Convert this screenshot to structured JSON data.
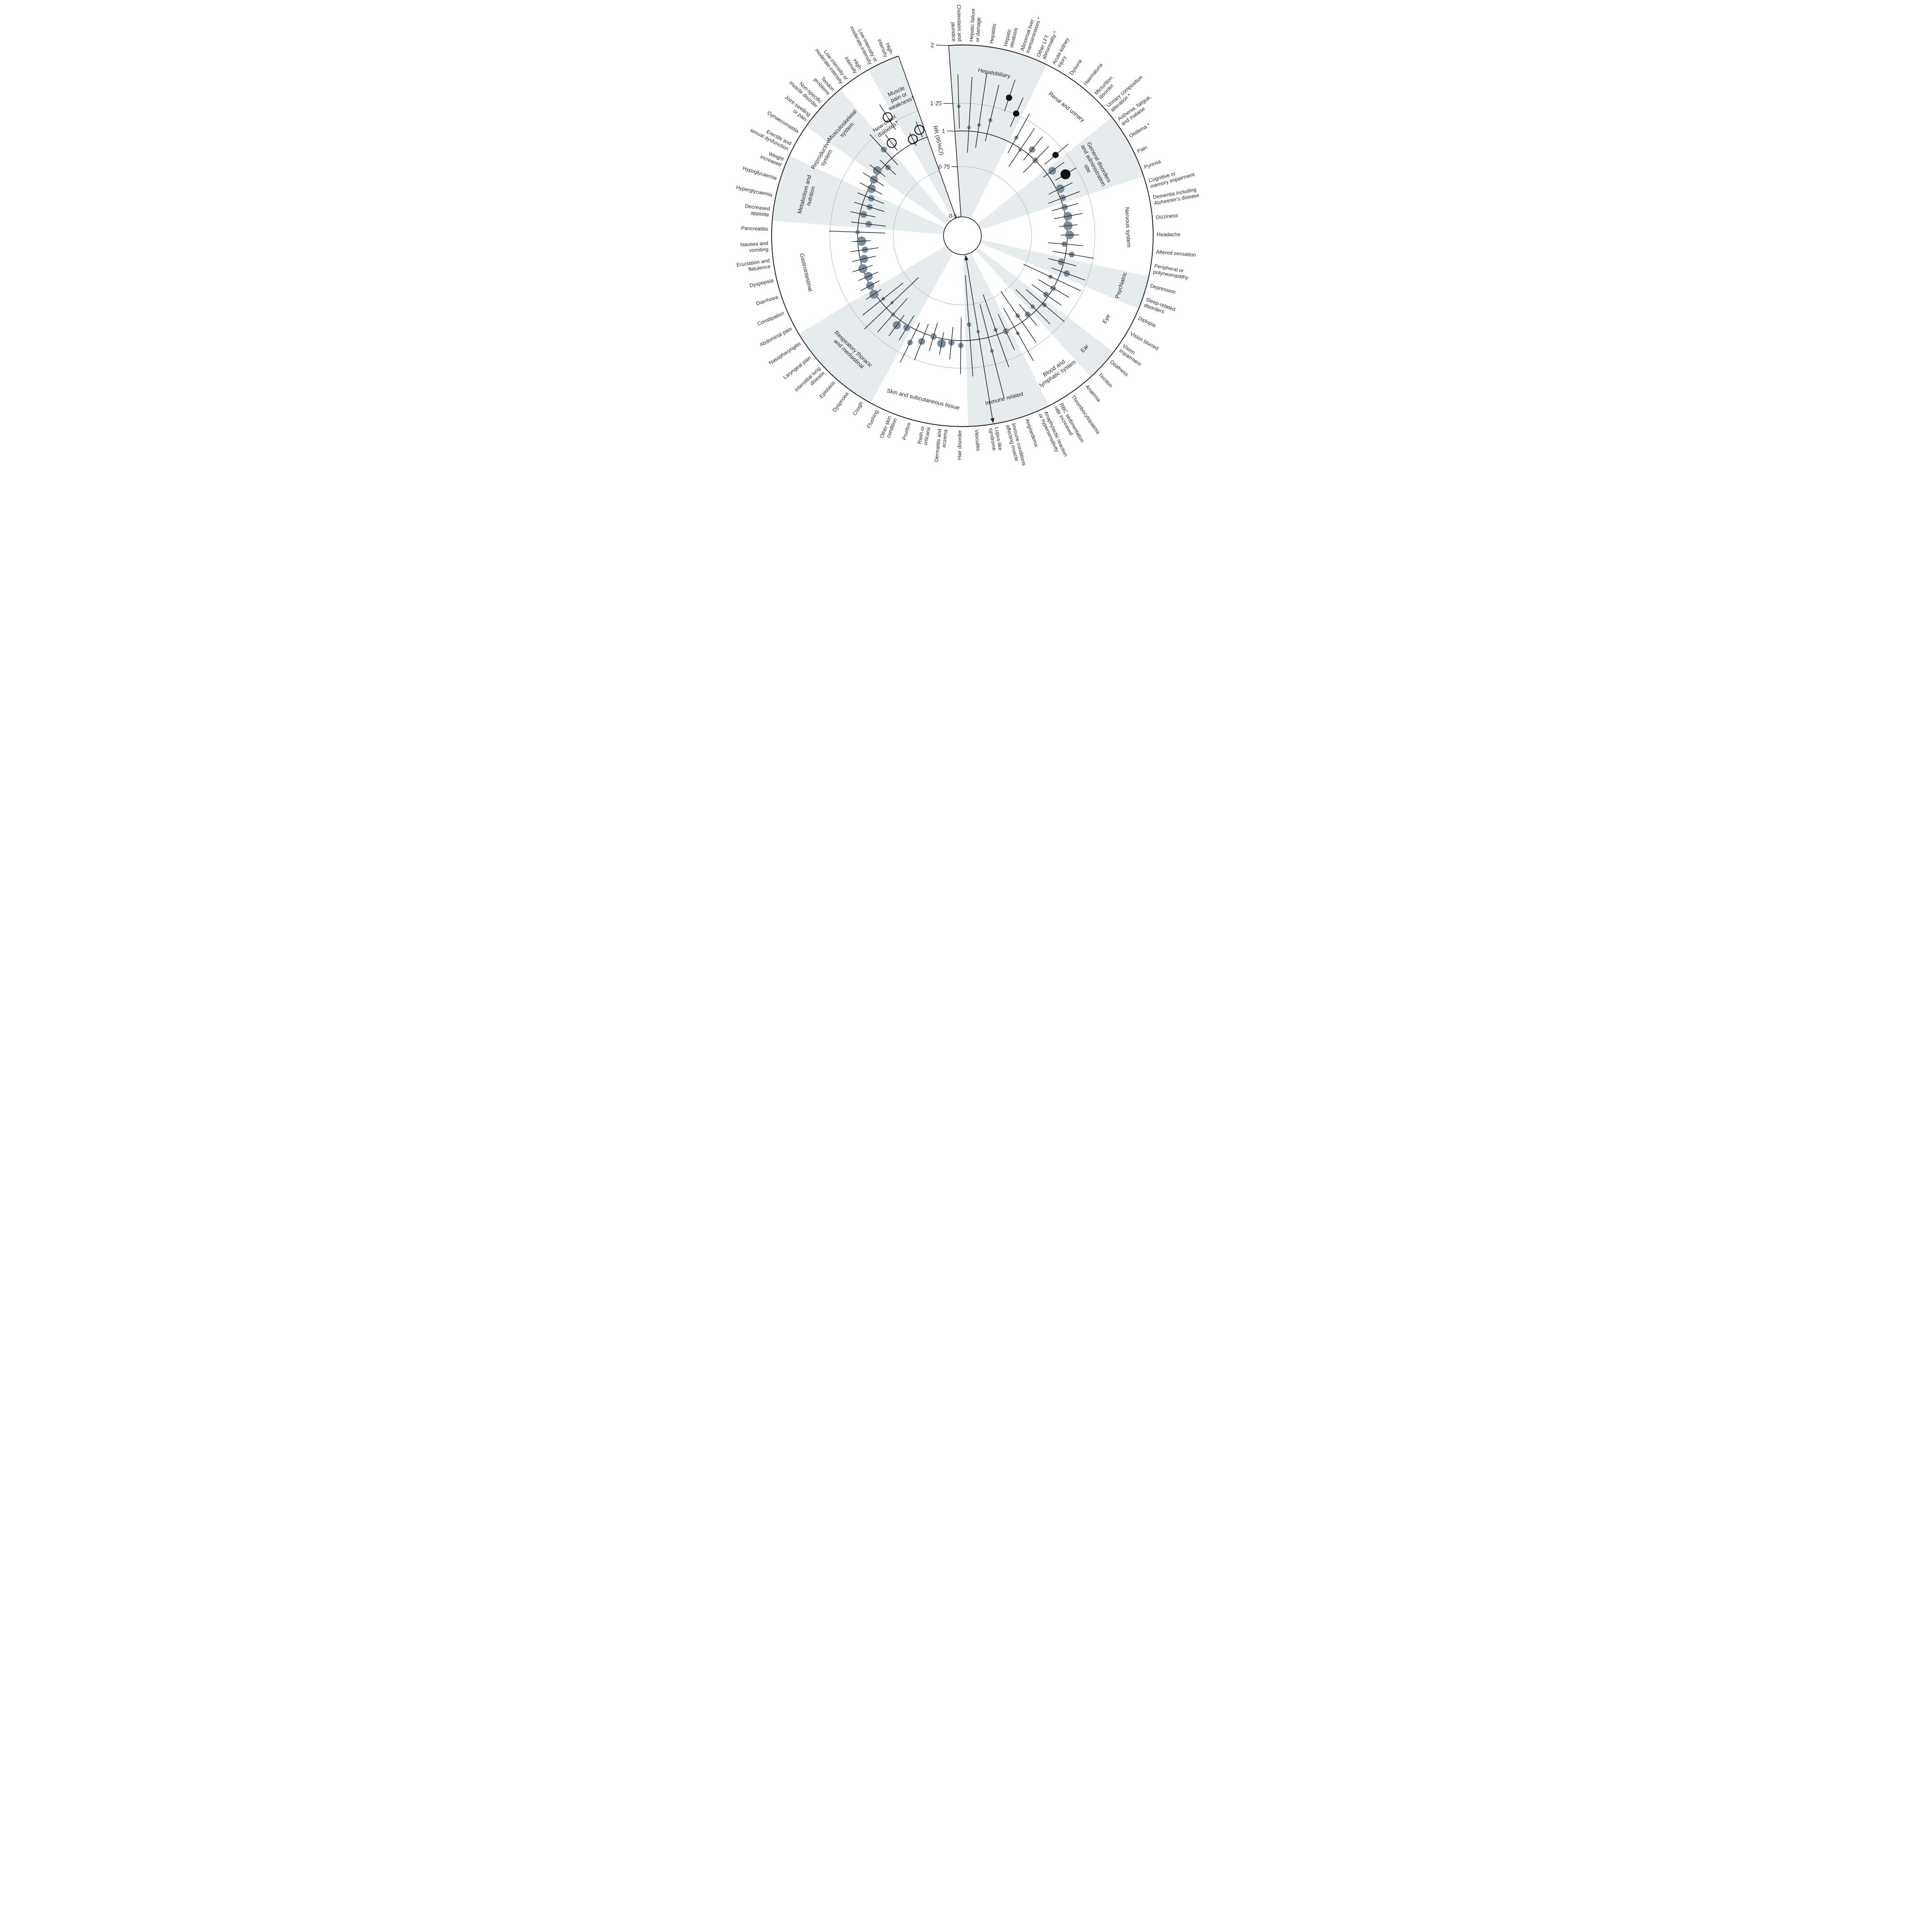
{
  "figure": {
    "axis_title": "RR (95%CI)",
    "ticks": [
      {
        "rr": 2,
        "label": "2"
      },
      {
        "rr": 1.25,
        "label": "1·25"
      },
      {
        "rr": 1,
        "label": "1"
      },
      {
        "rr": 0.75,
        "label": "0·75"
      },
      {
        "rr": 0.5,
        "label": "0·5"
      }
    ]
  },
  "chart_data": {
    "type": "circular_forest_plot",
    "title": "",
    "scale": {
      "min": 0.5,
      "max": 2,
      "transform": "log",
      "rings": [
        0.75,
        1,
        1.25
      ],
      "emphasis_ring": 1
    },
    "colors": {
      "wedge_shaded": "#e6ebed",
      "ring_gray": "#b4bcc2",
      "line": "#231f20",
      "dot_gray": "#7d8c99",
      "dot_black": "#121212",
      "open_stroke": "#1a1a1a",
      "background": "#ffffff"
    },
    "layout": {
      "first_angle_deg": -1.6,
      "step_deg": 5.067,
      "label_gap": 8
    },
    "categories": [
      {
        "name": "Hepatobiliary",
        "lines": [
          "Hepatobiliary"
        ],
        "shaded": true,
        "label_rf": 0.87
      },
      {
        "name": "Renal and urinary",
        "lines": [
          "Renal and urinary"
        ],
        "shaded": false,
        "label_rf": 0.87
      },
      {
        "name": "General disorders and administration site",
        "lines": [
          "General disorders",
          "and administration",
          "site"
        ],
        "shaded": true,
        "label_rf": 0.78
      },
      {
        "name": "Nervous system",
        "lines": [
          "Nervous system"
        ],
        "shaded": false,
        "label_rf": 0.87
      },
      {
        "name": "Psychiatric",
        "lines": [
          "Psychiatric"
        ],
        "shaded": true,
        "label_rf": 0.87
      },
      {
        "name": "Eye",
        "lines": [
          "Eye"
        ],
        "shaded": false,
        "label_rf": 0.87
      },
      {
        "name": "Ear",
        "lines": [
          "Ear"
        ],
        "shaded": true,
        "label_rf": 0.87
      },
      {
        "name": "Blood and lymphatic system",
        "lines": [
          "Blood and",
          "lymphatic system"
        ],
        "shaded": false,
        "label_rf": 0.86
      },
      {
        "name": "Immune related",
        "lines": [
          "Immune related"
        ],
        "shaded": true,
        "label_rf": 0.88
      },
      {
        "name": "Skin and subcutaneous tissue",
        "lines": [
          "Skin and subcutaneous tissue"
        ],
        "shaded": false,
        "label_rf": 0.88
      },
      {
        "name": "Respiratory thoracic and mediastinal",
        "lines": [
          "Respiratory thoracic",
          "and mediastinal"
        ],
        "shaded": true,
        "label_rf": 0.84
      },
      {
        "name": "Gastrointestinal",
        "lines": [
          "Gastrointestinal"
        ],
        "shaded": false,
        "label_rf": 0.84
      },
      {
        "name": "Metabolism and nutrition",
        "lines": [
          "Metabolism and",
          "nutrition"
        ],
        "shaded": true,
        "label_rf": 0.84
      },
      {
        "name": "Reproductive system",
        "lines": [
          "Reproductive",
          "system"
        ],
        "shaded": false,
        "label_rf": 0.84
      },
      {
        "name": "Musculoskeletal system",
        "lines": [
          "Musculoskeletal",
          "system"
        ],
        "shaded": true,
        "label_rf": 0.84
      },
      {
        "name": "New-onset diabetes†",
        "lines": [
          "New-onset",
          "diabetes†"
        ],
        "shaded": false,
        "label_rf": 0.7
      },
      {
        "name": "Muscle pain or weakness†",
        "lines": [
          "Muscle",
          "pain or",
          "weakness†"
        ],
        "shaded": true,
        "label_rf": 0.8
      }
    ],
    "items": [
      {
        "label": [
          "Cholestasis and",
          "jaundice"
        ],
        "cat": 0,
        "rr": 1.22,
        "lo": 1.02,
        "hi": 1.58,
        "size": 4,
        "style": "gray"
      },
      {
        "label": [
          "Hepatic failure",
          "or damage"
        ],
        "cat": 0,
        "rr": 1.03,
        "lo": 0.84,
        "hi": 1.55,
        "size": 4,
        "style": "gray"
      },
      {
        "label": [
          "Hepatitis"
        ],
        "cat": 0,
        "rr": 1.06,
        "lo": 0.88,
        "hi": 1.62,
        "size": 4,
        "style": "gray"
      },
      {
        "label": [
          "Hepatic",
          "steatosis"
        ],
        "cat": 0,
        "rr": 1.12,
        "lo": 0.94,
        "hi": 1.5,
        "size": 4.5,
        "style": "gray"
      },
      {
        "label": [
          "Abnormal liver",
          "transaminases *"
        ],
        "cat": 0,
        "rr": 1.39,
        "lo": 1.24,
        "hi": 1.62,
        "size": 7,
        "style": "black"
      },
      {
        "label": [
          "Other LFT",
          "abnormality *"
        ],
        "cat": 0,
        "rr": 1.26,
        "lo": 1.12,
        "hi": 1.45,
        "size": 7,
        "style": "black"
      },
      {
        "label": [
          "Acute kidney",
          "injury"
        ],
        "cat": 1,
        "rr": 1.06,
        "lo": 0.92,
        "hi": 1.32,
        "size": 4.5,
        "style": "gray"
      },
      {
        "label": [
          "Dysuria"
        ],
        "cat": 1,
        "rr": 0.99,
        "lo": 0.84,
        "hi": 1.22,
        "size": 4,
        "style": "gray"
      },
      {
        "label": [
          "Haematuria"
        ],
        "cat": 1,
        "rr": 1.05,
        "lo": 0.94,
        "hi": 1.2,
        "size": 7,
        "style": "gray"
      },
      {
        "label": [
          "Micturition",
          "disorder"
        ],
        "cat": 1,
        "rr": 1.0,
        "lo": 0.87,
        "hi": 1.17,
        "size": 6,
        "style": "gray"
      },
      {
        "label": [
          "Urinary composition",
          "alteration *"
        ],
        "cat": 1,
        "rr": 1.16,
        "lo": 1.03,
        "hi": 1.33,
        "size": 7,
        "style": "black"
      },
      {
        "label": [
          "Asthenia, fatigue,",
          "and malaise"
        ],
        "cat": 2,
        "rr": 1.05,
        "lo": 0.96,
        "hi": 1.18,
        "size": 8.5,
        "style": "gray"
      },
      {
        "label": [
          "Oedema *"
        ],
        "cat": 2,
        "rr": 1.13,
        "lo": 1.03,
        "hi": 1.25,
        "size": 11,
        "style": "black"
      },
      {
        "label": [
          "Pain"
        ],
        "cat": 2,
        "rr": 1.03,
        "lo": 0.93,
        "hi": 1.15,
        "size": 9.5,
        "style": "gray"
      },
      {
        "label": [
          "Pyrexia"
        ],
        "cat": 2,
        "rr": 1.02,
        "lo": 0.9,
        "hi": 1.18,
        "size": 7,
        "style": "gray"
      },
      {
        "label": [
          "Cognitive or",
          "memory impairment"
        ],
        "cat": 3,
        "rr": 1.01,
        "lo": 0.91,
        "hi": 1.13,
        "size": 7,
        "style": "gray"
      },
      {
        "label": [
          "Dementia including",
          "Alzheimer's disease"
        ],
        "cat": 3,
        "rr": 1.02,
        "lo": 0.91,
        "hi": 1.15,
        "size": 9.5,
        "style": "gray"
      },
      {
        "label": [
          "Dizziness"
        ],
        "cat": 3,
        "rr": 1.01,
        "lo": 0.94,
        "hi": 1.09,
        "size": 10,
        "style": "gray"
      },
      {
        "label": [
          "Headache"
        ],
        "cat": 3,
        "rr": 1.02,
        "lo": 0.95,
        "hi": 1.1,
        "size": 9.5,
        "style": "gray"
      },
      {
        "label": [
          "Altered sensation"
        ],
        "cat": 3,
        "rr": 0.98,
        "lo": 0.86,
        "hi": 1.14,
        "size": 6,
        "style": "gray"
      },
      {
        "label": [
          "Peripheral or",
          "polyneuropathy"
        ],
        "cat": 3,
        "rr": 1.05,
        "lo": 0.9,
        "hi": 1.26,
        "size": 6.5,
        "style": "gray"
      },
      {
        "label": [
          "Depression"
        ],
        "cat": 4,
        "rr": 0.98,
        "lo": 0.88,
        "hi": 1.11,
        "size": 7.5,
        "style": "gray"
      },
      {
        "label": [
          "Sleep-related",
          "disorders"
        ],
        "cat": 4,
        "rr": 1.05,
        "lo": 0.92,
        "hi": 1.23,
        "size": 7,
        "style": "gray"
      },
      {
        "label": [
          "Diplopia"
        ],
        "cat": 5,
        "rr": 0.94,
        "lo": 0.74,
        "hi": 1.23,
        "size": 4.5,
        "style": "gray"
      },
      {
        "label": [
          "Vision blurred"
        ],
        "cat": 5,
        "rr": 1.0,
        "lo": 0.87,
        "hi": 1.16,
        "size": 6,
        "style": "gray"
      },
      {
        "label": [
          "Vision",
          "impairment"
        ],
        "cat": 5,
        "rr": 0.98,
        "lo": 0.85,
        "hi": 1.14,
        "size": 6.5,
        "style": "gray"
      },
      {
        "label": [
          "Deafness"
        ],
        "cat": 6,
        "rr": 1.02,
        "lo": 0.84,
        "hi": 1.26,
        "size": 5,
        "style": "gray"
      },
      {
        "label": [
          "Tinnitus"
        ],
        "cat": 6,
        "rr": 0.96,
        "lo": 0.79,
        "hi": 1.17,
        "size": 5,
        "style": "gray"
      },
      {
        "label": [
          "Anaemia"
        ],
        "cat": 7,
        "rr": 0.98,
        "lo": 0.88,
        "hi": 1.1,
        "size": 6.5,
        "style": "gray"
      },
      {
        "label": [
          "Thrombocytopaenia"
        ],
        "cat": 7,
        "rr": 0.94,
        "lo": 0.74,
        "hi": 1.22,
        "size": 5,
        "style": "gray"
      },
      {
        "label": [
          "RBC sedimentation",
          "rate increased"
        ],
        "cat": 7,
        "rr": 1.06,
        "lo": 0.84,
        "hi": 1.37,
        "size": 4,
        "style": "gray"
      },
      {
        "label": [
          "Anaphylactic reaction",
          "or hypersensitivity"
        ],
        "cat": 8,
        "rr": 1.0,
        "lo": 0.86,
        "hi": 1.18,
        "size": 6.5,
        "style": "gray"
      },
      {
        "label": [
          "Angioedema"
        ],
        "cat": 8,
        "rr": 0.96,
        "lo": 0.71,
        "hi": 1.32,
        "size": 4.5,
        "style": "gray"
      },
      {
        "label": [
          "Immune conditions",
          "affecting muscle"
        ],
        "cat": 8,
        "rr": 1.12,
        "lo": 0.76,
        "hi": 1.66,
        "size": 4,
        "style": "gray"
      },
      {
        "label": [
          "Lupus-like",
          "syndrome"
        ],
        "cat": 8,
        "rr": 0.94,
        "lo": 0.42,
        "hi": 2.3,
        "size": 3.5,
        "style": "gray",
        "arrow_low": true,
        "arrow_high": true
      },
      {
        "label": [
          "Vasculitis"
        ],
        "cat": 8,
        "rr": 0.88,
        "lo": 0.59,
        "hi": 1.34,
        "size": 5,
        "style": "gray"
      },
      {
        "label": [
          "Hair disorder"
        ],
        "cat": 9,
        "rr": 1.04,
        "lo": 0.83,
        "hi": 1.31,
        "size": 6,
        "style": "gray"
      },
      {
        "label": [
          "Dermatitis and",
          "eczema"
        ],
        "cat": 9,
        "rr": 1.02,
        "lo": 0.9,
        "hi": 1.17,
        "size": 7,
        "style": "gray"
      },
      {
        "label": [
          "Rash or",
          "urticaria"
        ],
        "cat": 9,
        "rr": 1.04,
        "lo": 0.95,
        "hi": 1.14,
        "size": 9.5,
        "style": "gray"
      },
      {
        "label": [
          "Pruritus"
        ],
        "cat": 9,
        "rr": 1.0,
        "lo": 0.89,
        "hi": 1.13,
        "size": 7,
        "style": "gray"
      },
      {
        "label": [
          "Other skin",
          "condition"
        ],
        "cat": 9,
        "rr": 1.07,
        "lo": 0.92,
        "hi": 1.26,
        "size": 7.5,
        "style": "gray"
      },
      {
        "label": [
          "Flushing"
        ],
        "cat": 9,
        "rr": 1.12,
        "lo": 0.94,
        "hi": 1.34,
        "size": 6,
        "style": "gray"
      },
      {
        "label": [
          "Cough"
        ],
        "cat": 10,
        "rr": 1.02,
        "lo": 0.91,
        "hi": 1.15,
        "size": 7.5,
        "style": "gray"
      },
      {
        "label": [
          "Dyspnoea"
        ],
        "cat": 10,
        "rr": 1.05,
        "lo": 0.95,
        "hi": 1.17,
        "size": 9,
        "style": "gray"
      },
      {
        "label": [
          "Epistaxis"
        ],
        "cat": 10,
        "rr": 1.0,
        "lo": 0.84,
        "hi": 1.21,
        "size": 4.5,
        "style": "gray"
      },
      {
        "label": [
          "Interstitial lung",
          "disease"
        ],
        "cat": 10,
        "rr": 0.94,
        "lo": 0.7,
        "hi": 1.28,
        "size": 3.5,
        "style": "gray"
      },
      {
        "label": [
          "Laryngeal pain"
        ],
        "cat": 10,
        "rr": 0.97,
        "lo": 0.79,
        "hi": 1.2,
        "size": 4,
        "style": "gray"
      },
      {
        "label": [
          "Nasopharyngitis"
        ],
        "cat": 10,
        "rr": 1.01,
        "lo": 0.94,
        "hi": 1.09,
        "size": 10,
        "style": "gray"
      },
      {
        "label": [
          "Abdominal pain"
        ],
        "cat": 11,
        "rr": 1.0,
        "lo": 0.92,
        "hi": 1.09,
        "size": 9,
        "style": "gray"
      },
      {
        "label": [
          "Constipation"
        ],
        "cat": 11,
        "rr": 0.98,
        "lo": 0.9,
        "hi": 1.07,
        "size": 9.5,
        "style": "gray"
      },
      {
        "label": [
          "Diarrhoea"
        ],
        "cat": 11,
        "rr": 1.0,
        "lo": 0.92,
        "hi": 1.09,
        "size": 10,
        "style": "gray"
      },
      {
        "label": [
          "Dyspepsia"
        ],
        "cat": 11,
        "rr": 0.97,
        "lo": 0.88,
        "hi": 1.07,
        "size": 9,
        "style": "gray"
      },
      {
        "label": [
          "Eructation and",
          "flatulence"
        ],
        "cat": 11,
        "rr": 0.95,
        "lo": 0.85,
        "hi": 1.07,
        "size": 7,
        "style": "gray"
      },
      {
        "label": [
          "Nausea and",
          "vomiting"
        ],
        "cat": 11,
        "rr": 0.97,
        "lo": 0.9,
        "hi": 1.05,
        "size": 10.5,
        "style": "gray"
      },
      {
        "label": [
          "Pancreatitis"
        ],
        "cat": 11,
        "rr": 1.0,
        "lo": 0.8,
        "hi": 1.26,
        "size": 5,
        "style": "gray"
      },
      {
        "label": [
          "Decreased",
          "appetite"
        ],
        "cat": 12,
        "rr": 0.92,
        "lo": 0.8,
        "hi": 1.06,
        "size": 7,
        "style": "gray"
      },
      {
        "label": [
          "Hyperglycaemia"
        ],
        "cat": 12,
        "rr": 0.97,
        "lo": 0.88,
        "hi": 1.08,
        "size": 7.5,
        "style": "gray"
      },
      {
        "label": [
          "Hypoglycaemia"
        ],
        "cat": 12,
        "rr": 0.94,
        "lo": 0.83,
        "hi": 1.07,
        "size": 6.5,
        "style": "gray"
      },
      {
        "label": [
          "Weight",
          "increased"
        ],
        "cat": 12,
        "rr": 0.95,
        "lo": 0.85,
        "hi": 1.07,
        "size": 7,
        "style": "gray"
      },
      {
        "label": [
          "Erectile and",
          "sexual dysfunction"
        ],
        "cat": 13,
        "rr": 0.98,
        "lo": 0.89,
        "hi": 1.09,
        "size": 9.5,
        "style": "gray"
      },
      {
        "label": [
          "Gynaecomastia"
        ],
        "cat": 13,
        "rr": 1.0,
        "lo": 0.91,
        "hi": 1.11,
        "size": 9,
        "style": "gray"
      },
      {
        "label": [
          "Joint swelling",
          "or pain"
        ],
        "cat": 14,
        "rr": 1.02,
        "lo": 0.94,
        "hi": 1.1,
        "size": 9.5,
        "style": "gray"
      },
      {
        "label": [
          "Non-specific",
          "muscle disorder"
        ],
        "cat": 14,
        "rr": 0.97,
        "lo": 0.89,
        "hi": 1.06,
        "size": 6,
        "style": "gray"
      },
      {
        "label": [
          "Tendon",
          "problems"
        ],
        "cat": 14,
        "rr": 1.1,
        "lo": 0.93,
        "hi": 1.3,
        "size": 6.5,
        "style": "gray"
      },
      {
        "label": [
          "Low-intensity or",
          "moderate-intensity"
        ],
        "cat": 15,
        "rr": 1.1,
        "lo": 1.02,
        "hi": 1.2,
        "size": 10,
        "style": "open"
      },
      {
        "label": [
          "High-",
          "intensity"
        ],
        "cat": 15,
        "rr": 1.33,
        "lo": 1.18,
        "hi": 1.5,
        "size": 10,
        "style": "open"
      },
      {
        "label": [
          "Low-intensity or",
          "moderate-intensity"
        ],
        "cat": 16,
        "rr": 1.03,
        "lo": 0.97,
        "hi": 1.09,
        "size": 10,
        "style": "open"
      },
      {
        "label": [
          "High-",
          "intensity"
        ],
        "cat": 16,
        "rr": 1.08,
        "lo": 1.01,
        "hi": 1.16,
        "size": 10,
        "style": "open"
      }
    ]
  }
}
